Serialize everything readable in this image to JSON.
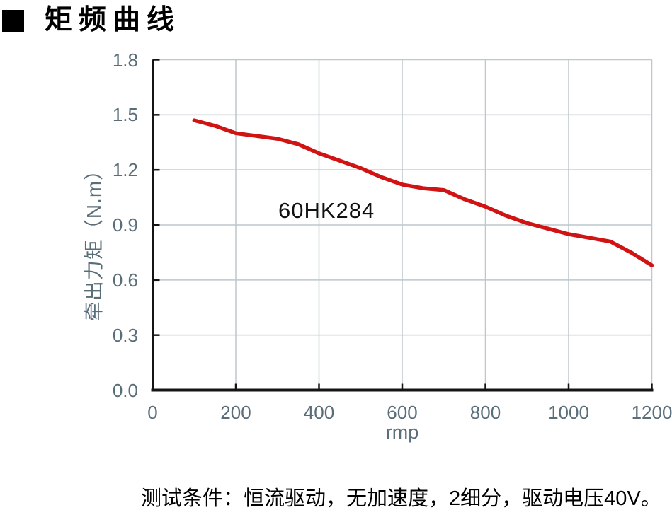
{
  "header": {
    "title": "矩频曲线"
  },
  "chart_data": {
    "type": "line",
    "title": "",
    "series_label": "60HK284",
    "xlabel": "rmp",
    "ylabel": "牵出力矩（N.m）",
    "xlim": [
      0,
      1200
    ],
    "ylim": [
      0,
      1.8
    ],
    "xticks": [
      0,
      200,
      400,
      600,
      800,
      1000,
      1200
    ],
    "ytick_labels": [
      "0.0",
      "0.3",
      "0.6",
      "0.9",
      "1.2",
      "1.5",
      "1.8"
    ],
    "grid": true,
    "legend_position": "none",
    "points": [
      [
        100,
        1.47
      ],
      [
        150,
        1.44
      ],
      [
        200,
        1.4
      ],
      [
        250,
        1.385
      ],
      [
        300,
        1.37
      ],
      [
        350,
        1.34
      ],
      [
        400,
        1.29
      ],
      [
        450,
        1.25
      ],
      [
        500,
        1.21
      ],
      [
        550,
        1.16
      ],
      [
        600,
        1.12
      ],
      [
        650,
        1.1
      ],
      [
        700,
        1.09
      ],
      [
        750,
        1.04
      ],
      [
        800,
        1.0
      ],
      [
        850,
        0.95
      ],
      [
        900,
        0.91
      ],
      [
        950,
        0.88
      ],
      [
        1000,
        0.85
      ],
      [
        1050,
        0.83
      ],
      [
        1100,
        0.81
      ],
      [
        1150,
        0.75
      ],
      [
        1200,
        0.68
      ]
    ]
  },
  "footer": {
    "test_conditions": "测试条件：恒流驱动，无加速度，2细分，驱动电压40V。"
  },
  "colors": {
    "curve": "#d01414",
    "axis": "#141414",
    "grid": "#bcc8cc",
    "tick_text": "#5a6e7a",
    "text": "#000000"
  }
}
